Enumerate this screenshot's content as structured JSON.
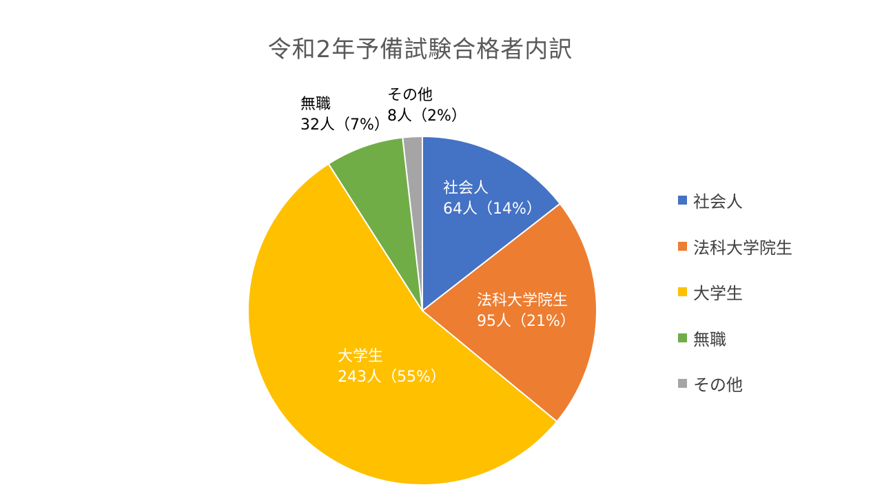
{
  "chart_data": {
    "type": "pie",
    "title": "令和2年予備試験合格者内訳",
    "categories": [
      "社会人",
      "法科大学院生",
      "大学生",
      "無職",
      "その他"
    ],
    "values": [
      64,
      95,
      243,
      32,
      8
    ],
    "percentages": [
      "14%",
      "21%",
      "55%",
      "7%",
      "2%"
    ],
    "data_labels": [
      {
        "name": "社会人",
        "value_text": "64人（14%）"
      },
      {
        "name": "法科大学院生",
        "value_text": "95人（21%）"
      },
      {
        "name": "大学生",
        "value_text": "243人（55%）"
      },
      {
        "name": "無職",
        "value_text": "32人（7%）"
      },
      {
        "name": "その他",
        "value_text": "8人（2%）"
      }
    ],
    "colors": [
      "#4472C4",
      "#ED7D31",
      "#FFC000",
      "#70AD47",
      "#A5A5A5"
    ],
    "legend_position": "right"
  }
}
